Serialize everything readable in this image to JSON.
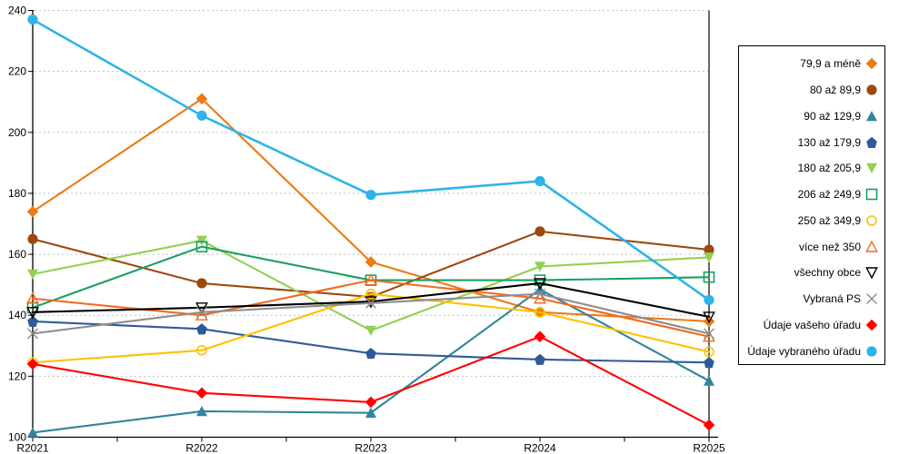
{
  "chart_data": {
    "type": "line",
    "title": "",
    "xlabel": "",
    "ylabel": "",
    "categories": [
      "R2021",
      "R2022",
      "R2023",
      "R2024",
      "R2025"
    ],
    "ylim": [
      100,
      240
    ],
    "ytick_step": 20,
    "grid": "horizontal-dashed",
    "legend_position": "right",
    "series": [
      {
        "label": "79,9 a méně",
        "color": "#EC7B13",
        "marker": "diamond",
        "values": [
          174,
          211,
          157.5,
          141,
          138
        ]
      },
      {
        "label": "80 až 89,9",
        "color": "#9E480E",
        "marker": "circle",
        "values": [
          165,
          150.5,
          146,
          167.5,
          161.5
        ]
      },
      {
        "label": "90 až 129,9",
        "color": "#31849B",
        "marker": "triangle",
        "values": [
          101.5,
          108.5,
          108,
          148.5,
          118.5
        ]
      },
      {
        "label": "130 až 179,9",
        "color": "#2E5B97",
        "marker": "pentagon",
        "values": [
          138,
          135.5,
          127.5,
          125.5,
          124.5
        ]
      },
      {
        "label": "180 až 205,9",
        "color": "#92D050",
        "marker": "triangle-down",
        "values": [
          153.5,
          164.5,
          135,
          156,
          159
        ]
      },
      {
        "label": "206 až 249,9",
        "color": "#18A05F",
        "marker": "square-open",
        "values": [
          142.5,
          162.5,
          151.5,
          151.5,
          152.5
        ]
      },
      {
        "label": "250 až 349,9",
        "color": "#FFC000",
        "marker": "circle-open",
        "values": [
          124.5,
          128.5,
          147,
          141,
          128
        ]
      },
      {
        "label": "více než 350",
        "color": "#F26B21",
        "marker": "triangle-open",
        "values": [
          145.5,
          140,
          151.5,
          145.5,
          133
        ]
      },
      {
        "label": "všechny obce",
        "color": "#000000",
        "marker": "triangle-down-open",
        "values": [
          141,
          142.5,
          144.5,
          150.5,
          139.5
        ]
      },
      {
        "label": "Vybraná PS",
        "color": "#8C8C8C",
        "marker": "x",
        "values": [
          134,
          141,
          144,
          147,
          134
        ]
      },
      {
        "label": "Údaje vašeho úřadu",
        "color": "#FF0000",
        "marker": "diamond",
        "values": [
          124,
          114.5,
          111.5,
          133,
          104
        ]
      },
      {
        "label": "Údaje vybraného úřadu",
        "color": "#2FB3E8",
        "marker": "circle",
        "values": [
          237,
          205.5,
          179.5,
          184,
          145
        ]
      }
    ],
    "axis_color": "#000000",
    "gridline_color": "#BFBFBF"
  }
}
